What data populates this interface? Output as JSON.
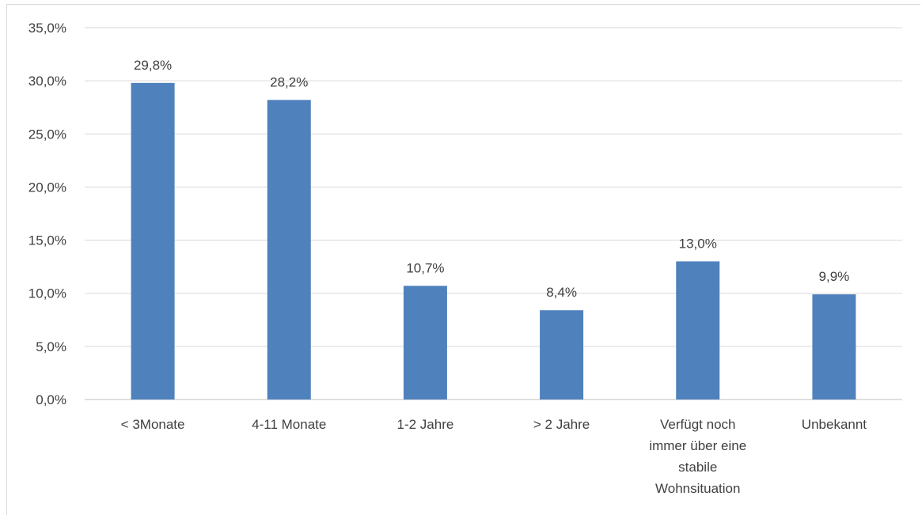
{
  "chart_data": {
    "type": "bar",
    "categories": [
      [
        "< 3Monate"
      ],
      [
        "4-11 Monate"
      ],
      [
        "1-2 Jahre"
      ],
      [
        "> 2 Jahre"
      ],
      [
        "Verfügt noch",
        "immer über eine",
        "stabile",
        "Wohnsituation"
      ],
      [
        "Unbekannt"
      ]
    ],
    "values": [
      29.8,
      28.2,
      10.7,
      8.4,
      13.0,
      9.9
    ],
    "data_labels": [
      "29,8%",
      "28,2%",
      "10,7%",
      "8,4%",
      "13,0%",
      "9,9%"
    ],
    "y_ticks": [
      0,
      5,
      10,
      15,
      20,
      25,
      30,
      35
    ],
    "y_tick_labels": [
      "0,0%",
      "5,0%",
      "10,0%",
      "15,0%",
      "20,0%",
      "25,0%",
      "30,0%",
      "35,0%"
    ],
    "ylim": [
      0,
      35
    ],
    "grid": true,
    "legend": "none",
    "bar_color": "#4f81bd",
    "title": "",
    "xlabel": "",
    "ylabel": ""
  }
}
